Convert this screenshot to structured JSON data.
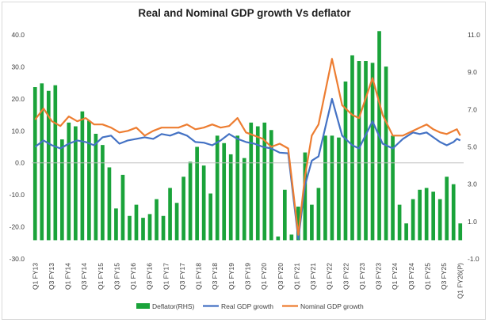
{
  "chart_data": {
    "type": "bar+line",
    "title": "Real and Nominal GDP growth Vs deflator",
    "left_axis": {
      "ylim": [
        -30,
        40
      ],
      "ticks": [
        "40.0",
        "30.0",
        "20.0",
        "10.0",
        "0.0",
        "-10.0",
        "-20.0",
        "-30.0"
      ]
    },
    "right_axis": {
      "ylim": [
        -1,
        11
      ],
      "ticks": [
        "11.0",
        "9.0",
        "7.0",
        "5.0",
        "3.0",
        "1.0",
        "-1.0"
      ]
    },
    "x_labels": [
      "Q1 FY13",
      "Q3 FY13",
      "Q1 FY14",
      "Q3 FY14",
      "Q1 FY15",
      "Q3 FY15",
      "Q1 FY16",
      "Q3 FY16",
      "Q1 FY17",
      "Q3 FY17",
      "Q1 FY18",
      "Q3 FY18",
      "Q1 FY19",
      "Q3 FY19",
      "Q1 FY20",
      "Q3 FY20",
      "Q1 FY21",
      "Q3 FY21",
      "Q1 FY22",
      "Q3 FY22",
      "Q1 FY23",
      "Q3 FY23",
      "Q1 FY24",
      "Q3 FY24",
      "Q1 FY25",
      "Q3 FY25",
      "Q1 FY26(P)"
    ],
    "series": [
      {
        "name": "Deflator(RHS)",
        "kind": "bar",
        "axis": "right",
        "color": "#1aa33a",
        "values": [
          8.2,
          8.4,
          8.0,
          8.3,
          5.4,
          6.3,
          6.1,
          6.9,
          6.4,
          5.7,
          5.1,
          3.9,
          1.7,
          3.5,
          1.3,
          1.9,
          1.2,
          1.4,
          2.2,
          1.3,
          2.8,
          2.0,
          3.4,
          4.2,
          5.0,
          4.0,
          2.5,
          5.6,
          5.2,
          4.6,
          5.6,
          4.4,
          6.3,
          6.1,
          6.3,
          5.9,
          0.2,
          2.7,
          0.3,
          1.8,
          4.7,
          1.9,
          2.8,
          5.6,
          5.6,
          5.5,
          8.5,
          9.9,
          9.6,
          9.6,
          9.5,
          11.2,
          9.3,
          5.6,
          1.9,
          0.9,
          2.2,
          2.7,
          2.8,
          2.6,
          2.2,
          3.4,
          3.0,
          0.9
        ]
      },
      {
        "name": "Real GDP growth",
        "kind": "line",
        "axis": "left",
        "color": "#4472c4",
        "values": [
          5.0,
          7.0,
          5.5,
          4.5,
          6.0,
          7.0,
          6.5,
          5.5,
          8.0,
          8.5,
          6.0,
          7.0,
          7.5,
          8.0,
          7.5,
          9.0,
          8.5,
          9.5,
          8.5,
          6.5,
          6.3,
          5.5,
          7.0,
          9.0,
          7.5,
          6.5,
          6.0,
          5.0,
          4.5,
          3.2,
          3.0,
          -23.8,
          -7.0,
          0.7,
          2.0,
          20.0,
          8.5,
          5.5,
          4.5,
          13.0,
          6.0,
          4.5,
          7.5,
          9.5,
          9.0,
          9.5,
          8.0,
          6.5,
          5.5,
          6.5,
          7.5,
          7.0
        ],
        "x_positions": [
          0,
          1.25,
          2.5,
          3.75,
          5,
          6.25,
          7.5,
          8.75,
          10,
          11.25,
          12.5,
          13.75,
          15,
          16.25,
          17.5,
          18.75,
          20,
          21.25,
          22.5,
          23.75,
          25,
          26.25,
          27.5,
          28.75,
          30,
          31.25,
          32.5,
          33.75,
          35,
          36.25,
          37.5,
          39,
          40,
          41,
          42,
          44,
          45.5,
          47,
          48,
          50,
          51.5,
          53,
          54.5,
          56,
          57,
          58,
          59,
          60,
          61,
          62,
          62.5,
          63
        ]
      },
      {
        "name": "Nominal GDP growth",
        "kind": "line",
        "axis": "left",
        "color": "#ed7d31",
        "values": [
          13.5,
          17.0,
          13.0,
          11.5,
          14.5,
          13.0,
          14.0,
          12.0,
          12.0,
          11.0,
          9.5,
          10.0,
          11.0,
          8.5,
          10.0,
          11.0,
          11.0,
          11.0,
          12.0,
          10.5,
          11.0,
          12.0,
          11.0,
          11.5,
          14.0,
          9.5,
          8.5,
          7.5,
          5.0,
          6.0,
          4.5,
          -22.5,
          -4.0,
          8.5,
          12.0,
          32.5,
          18.0,
          15.0,
          14.0,
          26.5,
          15.0,
          8.5,
          8.5,
          10.0,
          11.0,
          12.0,
          10.5,
          9.5,
          9.0,
          10.0,
          10.5,
          8.5
        ],
        "x_positions": [
          0,
          1.25,
          2.5,
          3.75,
          5,
          6.25,
          7.5,
          8.75,
          10,
          11.25,
          12.5,
          13.75,
          15,
          16.25,
          17.5,
          18.75,
          20,
          21.25,
          22.5,
          23.75,
          25,
          26.25,
          27.5,
          28.75,
          30,
          31.25,
          32.5,
          33.75,
          35,
          36.25,
          37.5,
          39,
          40,
          41,
          42,
          44,
          45.5,
          47,
          48,
          50,
          51.5,
          53,
          54.5,
          56,
          57,
          58,
          59,
          60,
          61,
          62,
          62.5,
          63
        ]
      }
    ],
    "legend": {
      "placement": "bottom",
      "entries": [
        "Deflator(RHS)",
        "Real GDP growth",
        "Nominal GDP growth"
      ]
    },
    "grid": false
  }
}
